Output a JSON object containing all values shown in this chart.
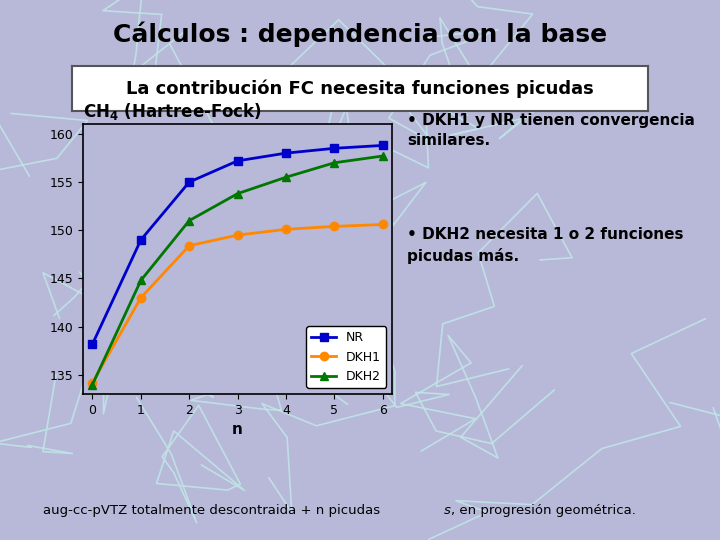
{
  "title": "Cálculos : dependencia con la base",
  "subtitle": "La contribución FC necesita funciones picudas",
  "xlabel": "n",
  "background_color": "#b8b8d8",
  "plot_bg_color": "#b8b8d8",
  "title_bg_color": "#00ff00",
  "title_color": "#000000",
  "x": [
    0,
    1,
    2,
    3,
    4,
    5,
    6
  ],
  "NR": [
    138.2,
    149.0,
    155.0,
    157.2,
    158.0,
    158.5,
    158.8
  ],
  "DKH1": [
    134.2,
    143.0,
    148.4,
    149.5,
    150.1,
    150.4,
    150.6
  ],
  "DKH2": [
    134.0,
    144.8,
    151.0,
    153.8,
    155.5,
    157.0,
    157.7
  ],
  "NR_color": "#0000cc",
  "DKH1_color": "#ff8800",
  "DKH2_color": "#007700",
  "ylim_min": 133,
  "ylim_max": 161,
  "yticks": [
    135,
    140,
    145,
    150,
    155,
    160
  ],
  "xticks": [
    0,
    1,
    2,
    3,
    4,
    5,
    6
  ],
  "annotation_text1": "• DKH1 y NR tienen convergencia\nsimilares.",
  "annotation_text2": "• DKH2 necesita 1 o 2 funciones\npicudas más.",
  "decor_color": "#c0e8e8",
  "subtitle_border_color": "#555555",
  "footer_pre": "aug-cc-pVTZ totalmente descontraida + n picudas ",
  "footer_italic": "s",
  "footer_post": ", en progresión geométrica."
}
